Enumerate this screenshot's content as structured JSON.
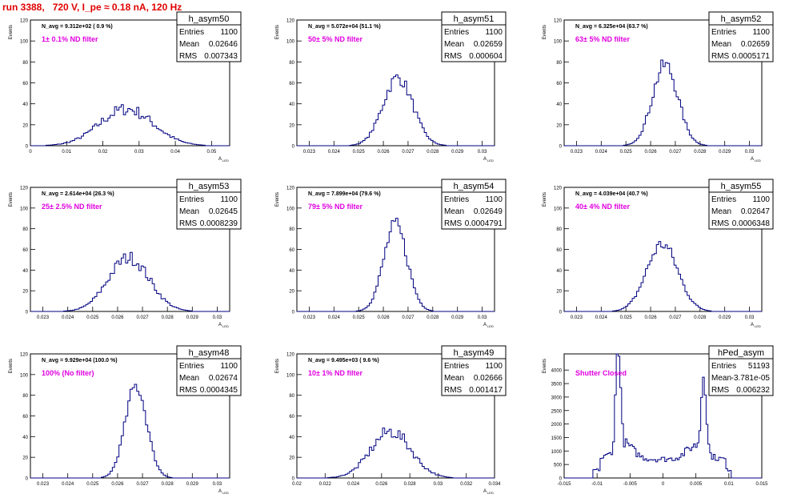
{
  "title": "run 3388,   720 V, I_pe ≈ 0.18 nA, 120 Hz",
  "colors": {
    "hist": "#000080",
    "title": "#e00000",
    "annotation": "#e000e0"
  },
  "chart_data": [
    {
      "type": "histogram",
      "name": "h_asym50",
      "entries": "1100",
      "mean": "0.02646",
      "rms": "0.007343",
      "navg": "N_avg = 9.312e+02 ( 0.9 %)",
      "note": "1± 0.1% ND filter",
      "xlabel": "A_LED",
      "ylabel": "Events",
      "xlim": [
        0,
        0.055
      ],
      "ylim": [
        0,
        120
      ],
      "xticks": [
        0,
        0.01,
        0.02,
        0.03,
        0.04,
        0.05
      ],
      "xtick_labels": [
        "0",
        "0.01",
        "0.02",
        "0.03",
        "0.04",
        "0.05"
      ],
      "yticks": [
        0,
        20,
        40,
        60,
        80,
        100,
        120
      ],
      "ytick_labels": [
        "0",
        "20",
        "40",
        "60",
        "80",
        "100",
        "120"
      ],
      "shape": {
        "center": 0.0265,
        "width": 0.0074,
        "peak": 35,
        "noise": 0.35
      }
    },
    {
      "type": "histogram",
      "name": "h_asym51",
      "entries": "1100",
      "mean": "0.02659",
      "rms": "0.000604",
      "navg": "N_avg = 5.072e+04 (51.1 %)",
      "note": "50± 5% ND filter",
      "xlabel": "A_LED",
      "ylabel": "Events",
      "xlim": [
        0.0225,
        0.0305
      ],
      "ylim": [
        0,
        120
      ],
      "xticks": [
        0.023,
        0.024,
        0.025,
        0.026,
        0.027,
        0.028,
        0.029,
        0.03
      ],
      "xtick_labels": [
        "0.023",
        "0.024",
        "0.025",
        "0.026",
        "0.027",
        "0.028",
        "0.029",
        "0.03"
      ],
      "yticks": [
        0,
        20,
        40,
        60,
        80,
        100,
        120
      ],
      "ytick_labels": [
        "0",
        "20",
        "40",
        "60",
        "80",
        "100",
        "120"
      ],
      "shape": {
        "center": 0.02659,
        "width": 0.000604,
        "peak": 65,
        "noise": 0.2
      }
    },
    {
      "type": "histogram",
      "name": "h_asym52",
      "entries": "1100",
      "mean": "0.02659",
      "rms": "0.0005171",
      "navg": "N_avg = 6.325e+04 (63.7 %)",
      "note": "63± 5% ND filter",
      "xlabel": "A_LED",
      "ylabel": "Events",
      "xlim": [
        0.0225,
        0.0305
      ],
      "ylim": [
        0,
        120
      ],
      "xticks": [
        0.023,
        0.024,
        0.025,
        0.026,
        0.027,
        0.028,
        0.029,
        0.03
      ],
      "xtick_labels": [
        "0.023",
        "0.024",
        "0.025",
        "0.026",
        "0.027",
        "0.028",
        "0.029",
        "0.03"
      ],
      "yticks": [
        0,
        20,
        40,
        60,
        80,
        100,
        120
      ],
      "ytick_labels": [
        "0",
        "20",
        "40",
        "60",
        "80",
        "100",
        "120"
      ],
      "shape": {
        "center": 0.02659,
        "width": 0.000517,
        "peak": 77,
        "noise": 0.2
      }
    },
    {
      "type": "histogram",
      "name": "h_asym53",
      "entries": "1100",
      "mean": "0.02645",
      "rms": "0.0008239",
      "navg": "N_avg = 2.614e+04 (26.3 %)",
      "note": "25± 2.5% ND filter",
      "xlabel": "A_LED",
      "ylabel": "Events",
      "xlim": [
        0.0225,
        0.0305
      ],
      "ylim": [
        0,
        120
      ],
      "xticks": [
        0.023,
        0.024,
        0.025,
        0.026,
        0.027,
        0.028,
        0.029,
        0.03
      ],
      "xtick_labels": [
        "0.023",
        "0.024",
        "0.025",
        "0.026",
        "0.027",
        "0.028",
        "0.029",
        "0.03"
      ],
      "yticks": [
        0,
        20,
        40,
        60,
        80,
        100,
        120
      ],
      "ytick_labels": [
        "0",
        "20",
        "40",
        "60",
        "80",
        "100",
        "120"
      ],
      "shape": {
        "center": 0.02645,
        "width": 0.000824,
        "peak": 52,
        "noise": 0.25
      }
    },
    {
      "type": "histogram",
      "name": "h_asym54",
      "entries": "1100",
      "mean": "0.02649",
      "rms": "0.0004791",
      "navg": "N_avg = 7.899e+04 (79.6 %)",
      "note": "79± 5% ND filter",
      "xlabel": "A_LED",
      "ylabel": "Events",
      "xlim": [
        0.0225,
        0.0305
      ],
      "ylim": [
        0,
        120
      ],
      "xticks": [
        0.023,
        0.024,
        0.025,
        0.026,
        0.027,
        0.028,
        0.029,
        0.03
      ],
      "xtick_labels": [
        "0.023",
        "0.024",
        "0.025",
        "0.026",
        "0.027",
        "0.028",
        "0.029",
        "0.03"
      ],
      "yticks": [
        0,
        20,
        40,
        60,
        80,
        100,
        120
      ],
      "ytick_labels": [
        "0",
        "20",
        "40",
        "60",
        "80",
        "100",
        "120"
      ],
      "shape": {
        "center": 0.02649,
        "width": 0.000479,
        "peak": 83,
        "noise": 0.2
      }
    },
    {
      "type": "histogram",
      "name": "h_asym55",
      "entries": "1100",
      "mean": "0.02647",
      "rms": "0.0006348",
      "navg": "N_avg = 4.039e+04 (40.7 %)",
      "note": "40± 4% ND filter",
      "xlabel": "A_LED",
      "ylabel": "Events",
      "xlim": [
        0.0225,
        0.0305
      ],
      "ylim": [
        0,
        120
      ],
      "xticks": [
        0.023,
        0.024,
        0.025,
        0.026,
        0.027,
        0.028,
        0.029,
        0.03
      ],
      "xtick_labels": [
        "0.023",
        "0.024",
        "0.025",
        "0.026",
        "0.027",
        "0.028",
        "0.029",
        "0.03"
      ],
      "yticks": [
        0,
        20,
        40,
        60,
        80,
        100,
        120
      ],
      "ytick_labels": [
        "0",
        "20",
        "40",
        "60",
        "80",
        "100",
        "120"
      ],
      "shape": {
        "center": 0.02647,
        "width": 0.000635,
        "peak": 65,
        "noise": 0.2
      }
    },
    {
      "type": "histogram",
      "name": "h_asym48",
      "entries": "1100",
      "mean": "0.02674",
      "rms": "0.0004345",
      "navg": "N_avg = 9.929e+04 (100.0 %)",
      "note": "100% (No filter)",
      "xlabel": "A_LED",
      "ylabel": "Events",
      "xlim": [
        0.0225,
        0.0305
      ],
      "ylim": [
        0,
        120
      ],
      "xticks": [
        0.023,
        0.024,
        0.025,
        0.026,
        0.027,
        0.028,
        0.029,
        0.03
      ],
      "xtick_labels": [
        "0.023",
        "0.024",
        "0.025",
        "0.026",
        "0.027",
        "0.028",
        "0.029",
        "0.03"
      ],
      "yticks": [
        0,
        20,
        40,
        60,
        80,
        100,
        120
      ],
      "ytick_labels": [
        "0",
        "20",
        "40",
        "60",
        "80",
        "100",
        "120"
      ],
      "shape": {
        "center": 0.02674,
        "width": 0.000435,
        "peak": 89,
        "noise": 0.15
      }
    },
    {
      "type": "histogram",
      "name": "h_asym49",
      "entries": "1100",
      "mean": "0.02666",
      "rms": "0.001417",
      "navg": "N_avg = 9.495e+03 ( 9.6 %)",
      "note": "10± 1% ND filter",
      "xlabel": "A_LED",
      "ylabel": "Events",
      "xlim": [
        0.02,
        0.034
      ],
      "ylim": [
        0,
        120
      ],
      "xticks": [
        0.02,
        0.022,
        0.024,
        0.026,
        0.028,
        0.03,
        0.032,
        0.034
      ],
      "xtick_labels": [
        "0.02",
        "0.022",
        "0.024",
        "0.026",
        "0.028",
        "0.03",
        "0.032",
        "0.034"
      ],
      "yticks": [
        0,
        20,
        40,
        60,
        80,
        100,
        120
      ],
      "ytick_labels": [
        "0",
        "20",
        "40",
        "60",
        "80",
        "100",
        "120"
      ],
      "shape": {
        "center": 0.02666,
        "width": 0.00142,
        "peak": 45,
        "noise": 0.3
      }
    },
    {
      "type": "histogram",
      "name": "hPed_asym",
      "entries": "51193",
      "mean": "-3.781e-05",
      "rms": "0.006232",
      "navg": "",
      "note": "Shutter Closed",
      "xlabel": "",
      "ylabel": "Events",
      "xlim": [
        -0.015,
        0.015
      ],
      "ylim": [
        0,
        4600
      ],
      "xticks": [
        -0.015,
        -0.01,
        -0.005,
        0,
        0.005,
        0.01,
        0.015
      ],
      "xtick_labels": [
        "-0.015",
        "-0.01",
        "-0.005",
        "0",
        "0.005",
        "0.01",
        "0.015"
      ],
      "yticks": [
        0,
        500,
        1000,
        1500,
        2000,
        2500,
        3000,
        3500,
        4000
      ],
      "ytick_labels": [
        "0",
        "500",
        "1000",
        "1500",
        "2000",
        "2500",
        "3000",
        "3500",
        "4000"
      ],
      "shape": {
        "type": "pedestal",
        "left": -0.0068,
        "right": 0.0062,
        "leftpeak": 4300,
        "rightpeak": 3100
      }
    }
  ]
}
